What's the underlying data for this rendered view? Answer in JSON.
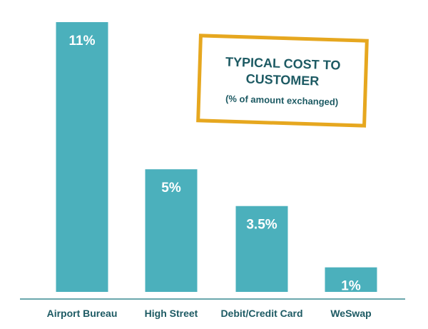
{
  "chart_data": {
    "type": "bar",
    "title": "TYPICAL COST TO CUSTOMER",
    "subtitle": "(% of amount exchanged)",
    "xlabel": "",
    "ylabel": "",
    "ylim": [
      0,
      11
    ],
    "grid": false,
    "categories": [
      "Airport Bureau",
      "High Street",
      "Debit/Credit Card",
      "WeSwap"
    ],
    "values": [
      11,
      5,
      3.5,
      1
    ],
    "value_labels": [
      "11%",
      "5%",
      "3.5%",
      "1%"
    ],
    "bar_color": "#4bb0bc",
    "axis_color": "#6aa7ad",
    "label_color": "#1d5a63",
    "title_border_color": "#e6a71f"
  }
}
